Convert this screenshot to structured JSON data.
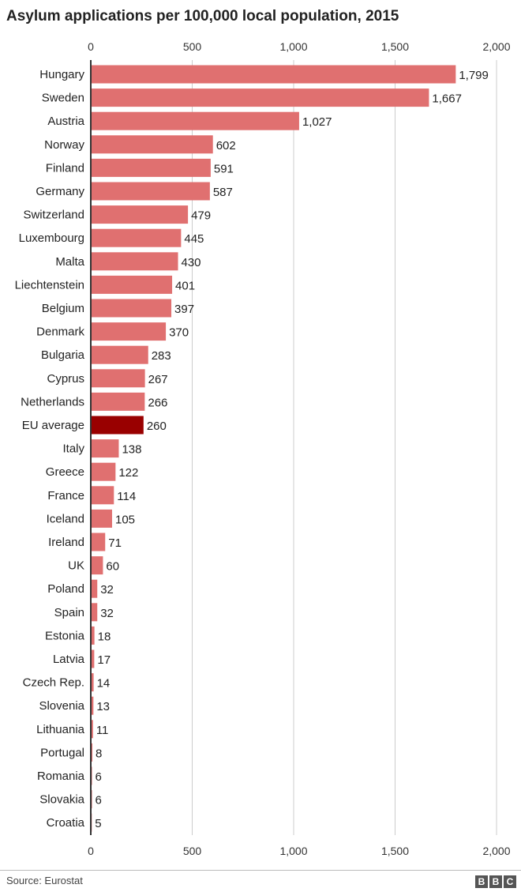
{
  "chart_data": {
    "type": "bar",
    "orientation": "horizontal",
    "title": "Asylum applications per 100,000 local population, 2015",
    "categories": [
      "Hungary",
      "Sweden",
      "Austria",
      "Norway",
      "Finland",
      "Germany",
      "Switzerland",
      "Luxembourg",
      "Malta",
      "Liechtenstein",
      "Belgium",
      "Denmark",
      "Bulgaria",
      "Cyprus",
      "Netherlands",
      "EU average",
      "Italy",
      "Greece",
      "France",
      "Iceland",
      "Ireland",
      "UK",
      "Poland",
      "Spain",
      "Estonia",
      "Latvia",
      "Czech Rep.",
      "Slovenia",
      "Lithuania",
      "Portugal",
      "Romania",
      "Slovakia",
      "Croatia"
    ],
    "values": [
      1799,
      1667,
      1027,
      602,
      591,
      587,
      479,
      445,
      430,
      401,
      397,
      370,
      283,
      267,
      266,
      260,
      138,
      122,
      114,
      105,
      71,
      60,
      32,
      32,
      18,
      17,
      14,
      13,
      11,
      8,
      6,
      6,
      5
    ],
    "value_labels": [
      "1,799",
      "1,667",
      "1,027",
      "602",
      "591",
      "587",
      "479",
      "445",
      "430",
      "401",
      "397",
      "370",
      "283",
      "267",
      "266",
      "260",
      "138",
      "122",
      "114",
      "105",
      "71",
      "60",
      "32",
      "32",
      "18",
      "17",
      "14",
      "13",
      "11",
      "8",
      "6",
      "6",
      "5"
    ],
    "highlight": "EU average",
    "xlim": [
      0,
      2000
    ],
    "xticks": [
      0,
      500,
      1000,
      1500,
      2000
    ],
    "xtick_labels": [
      "0",
      "500",
      "1,000",
      "1,500",
      "2,000"
    ],
    "xaxis_position": "top and bottom",
    "grid": true,
    "colors": {
      "bar": "#e07070",
      "highlight": "#990000",
      "grid": "#cccccc",
      "axis": "#333333"
    }
  },
  "footer": {
    "source": "Source: Eurostat",
    "logo": [
      "B",
      "B",
      "C"
    ]
  }
}
